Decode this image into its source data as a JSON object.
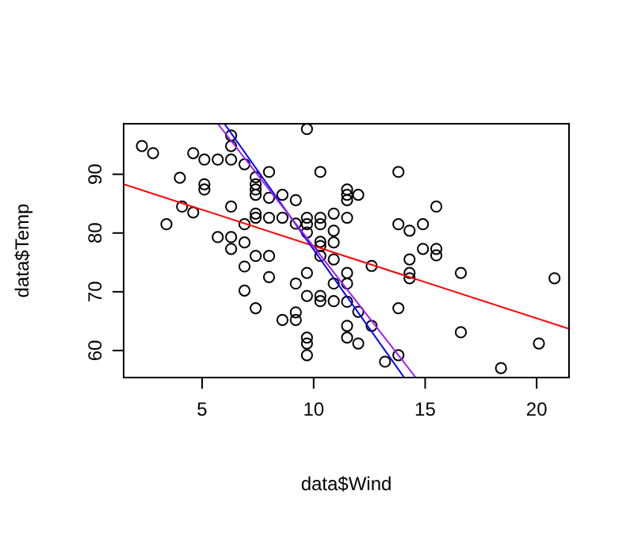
{
  "chart_data": {
    "type": "scatter",
    "xlabel": "data$Wind",
    "ylabel": "data$Temp",
    "xlim": [
      1.48,
      21.45
    ],
    "ylim": [
      55.4,
      98.6
    ],
    "xticks": [
      5,
      10,
      15,
      20
    ],
    "yticks": [
      60,
      70,
      80,
      90
    ],
    "series": [
      {
        "color": "#000000",
        "marker": "circle",
        "x": [
          2.3,
          2.8,
          3.4,
          4.0,
          4.1,
          4.6,
          4.6,
          5.1,
          5.1,
          5.1,
          5.7,
          5.7,
          6.3,
          6.3,
          6.3,
          6.3,
          6.3,
          6.3,
          6.9,
          6.9,
          6.9,
          6.9,
          6.9,
          7.4,
          7.4,
          7.4,
          7.4,
          7.4,
          7.4,
          7.4,
          7.4,
          8.0,
          8.0,
          8.0,
          8.0,
          8.0,
          8.6,
          8.6,
          8.6,
          9.2,
          9.2,
          9.2,
          9.2,
          9.2,
          9.7,
          9.7,
          9.7,
          9.7,
          9.7,
          9.7,
          9.7,
          9.7,
          9.7,
          10.3,
          10.3,
          10.3,
          10.3,
          10.3,
          10.3,
          10.3,
          10.3,
          10.9,
          10.9,
          10.9,
          10.9,
          10.9,
          10.9,
          11.5,
          11.5,
          11.5,
          11.5,
          11.5,
          11.5,
          11.5,
          11.5,
          11.5,
          12.0,
          12.0,
          12.0,
          12.6,
          12.6,
          13.2,
          13.8,
          13.8,
          13.8,
          13.8,
          14.3,
          14.3,
          14.3,
          14.3,
          14.9,
          14.9,
          15.5,
          15.5,
          15.5,
          16.6,
          16.6,
          18.4,
          20.1,
          20.8
        ],
        "values": [
          94.8,
          93.6,
          81.5,
          89.4,
          84.5,
          93.6,
          83.5,
          92.5,
          88.3,
          87.4,
          92.5,
          79.3,
          96.6,
          94.8,
          92.5,
          84.5,
          79.3,
          77.3,
          91.7,
          81.5,
          78.4,
          74.3,
          70.2,
          89.5,
          88.3,
          87.4,
          86.5,
          83.3,
          82.6,
          76.1,
          67.2,
          90.4,
          86.0,
          82.6,
          76.1,
          72.5,
          86.5,
          82.6,
          65.2,
          85.6,
          81.6,
          71.4,
          66.5,
          65.2,
          97.7,
          82.6,
          81.5,
          80.1,
          73.2,
          69.3,
          62.2,
          61.2,
          59.2,
          90.4,
          82.6,
          81.5,
          78.5,
          77.8,
          76.1,
          69.3,
          68.4,
          83.3,
          80.4,
          78.4,
          75.5,
          71.4,
          68.4,
          87.4,
          86.5,
          85.6,
          82.6,
          73.2,
          71.4,
          68.3,
          64.2,
          62.2,
          86.5,
          66.6,
          61.2,
          74.4,
          64.2,
          58.1,
          90.4,
          81.5,
          67.2,
          59.2,
          80.4,
          75.5,
          73.2,
          72.3,
          81.5,
          77.3,
          84.5,
          77.3,
          76.2,
          73.2,
          63.1,
          57.0,
          61.2,
          72.3
        ]
      },
      {
        "type": "line",
        "color": "#ff0000",
        "marker": "none",
        "line_style": "solid",
        "x": [
          1.48,
          21.45
        ],
        "values": [
          88.3,
          63.7
        ]
      },
      {
        "type": "line",
        "color": "#0000ff",
        "marker": "none",
        "line_style": "solid",
        "x": [
          6.0,
          14.06
        ],
        "values": [
          98.6,
          55.4
        ]
      },
      {
        "type": "line",
        "color": "#a020f0",
        "marker": "none",
        "line_style": "solid",
        "x": [
          5.7,
          14.58
        ],
        "values": [
          98.6,
          55.4
        ]
      }
    ]
  }
}
